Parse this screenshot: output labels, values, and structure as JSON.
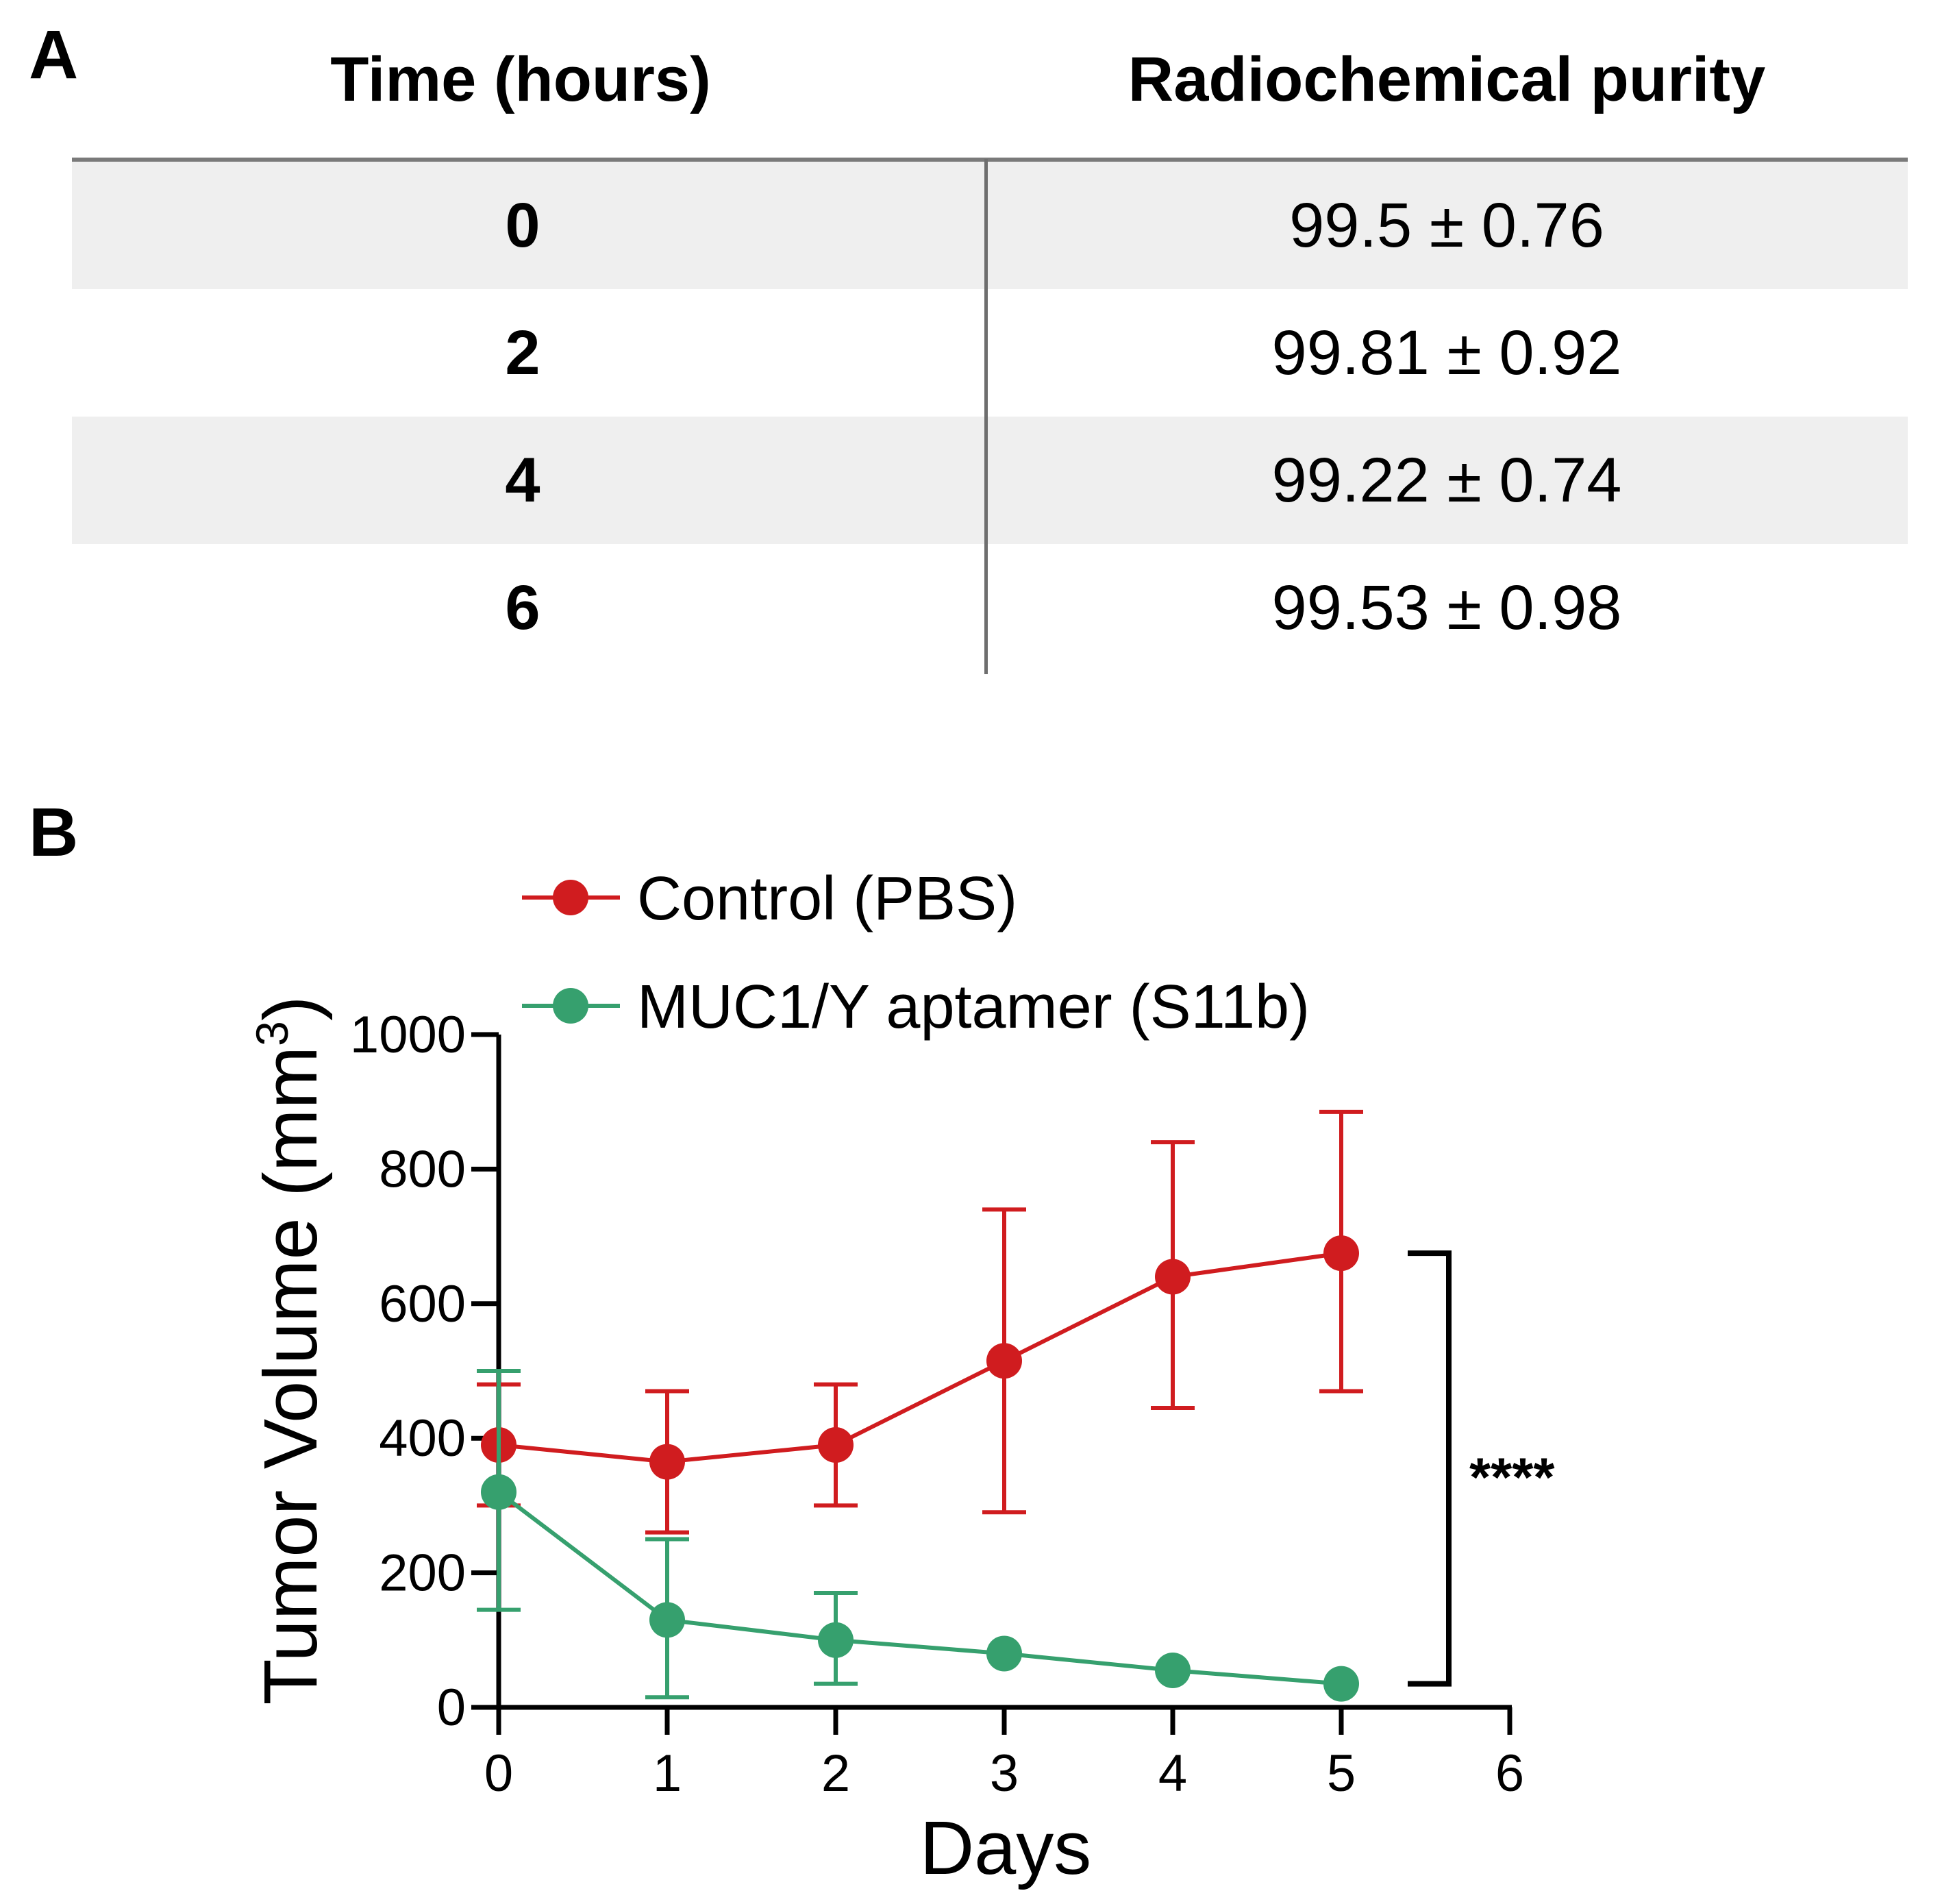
{
  "panel_a": {
    "label": "A",
    "headers": {
      "time": "Time (hours)",
      "purity": "Radiochemical purity"
    },
    "rows": [
      {
        "time": "0",
        "purity": "99.5 ± 0.76"
      },
      {
        "time": "2",
        "purity": "99.81 ± 0.92"
      },
      {
        "time": "4",
        "purity": "99.22 ± 0.74"
      },
      {
        "time": "6",
        "purity": "99.53 ± 0.98"
      }
    ]
  },
  "panel_b": {
    "label": "B"
  },
  "chart_data": [
    {
      "type": "table",
      "columns": [
        "Time (hours)",
        "Radiochemical purity"
      ],
      "rows": [
        [
          "0",
          "99.5 ± 0.76"
        ],
        [
          "2",
          "99.81 ± 0.92"
        ],
        [
          "4",
          "99.22 ± 0.74"
        ],
        [
          "6",
          "99.53 ± 0.98"
        ]
      ]
    },
    {
      "type": "line",
      "title": "",
      "xlabel": "Days",
      "ylabel": "Tumor Volume (mm",
      "ylabel_superscript": "3",
      "ylabel_close": ")",
      "xlim": [
        0,
        6
      ],
      "ylim": [
        0,
        1000
      ],
      "xticks": [
        0,
        1,
        2,
        3,
        4,
        5,
        6
      ],
      "yticks": [
        0,
        200,
        400,
        600,
        800,
        1000
      ],
      "legend_position": "top",
      "series": [
        {
          "name": "Control (PBS)",
          "color": "#d01c1f",
          "x": [
            0,
            1,
            2,
            3,
            4,
            5
          ],
          "y": [
            390,
            365,
            390,
            515,
            640,
            675
          ],
          "err_low": [
            300,
            260,
            300,
            290,
            445,
            470
          ],
          "err_high": [
            480,
            470,
            480,
            740,
            840,
            885
          ]
        },
        {
          "name": "MUC1/Y aptamer (S11b)",
          "color": "#36a06e",
          "x": [
            0,
            1,
            2,
            3,
            4,
            5
          ],
          "y": [
            320,
            130,
            100,
            80,
            55,
            35
          ],
          "err_low": [
            145,
            15,
            35,
            80,
            55,
            35
          ],
          "err_high": [
            500,
            250,
            170,
            80,
            55,
            35
          ]
        }
      ],
      "annotation": {
        "text": "****",
        "x_from": 5,
        "y_from": 35,
        "y_to": 675
      }
    }
  ]
}
